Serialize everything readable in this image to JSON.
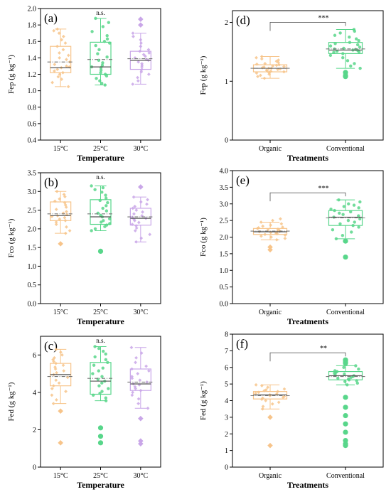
{
  "colors": {
    "orange": "#f7c48a",
    "green": "#58d68a",
    "purple": "#c9a6e8",
    "axis": "#000000",
    "mean_line": "#777777"
  },
  "chart_data": [
    {
      "type": "box",
      "panel_label": "(a)",
      "ylabel": "Fep (g kg⁻¹)",
      "xlabel": "Temperature",
      "ylim": [
        0.4,
        2.0
      ],
      "yticks": [
        0.4,
        0.6,
        0.8,
        1.0,
        1.2,
        1.4,
        1.6,
        1.8,
        2.0
      ],
      "annotation": "n.s.",
      "categories": [
        "15°C",
        "25°C",
        "30°C"
      ],
      "boxes": [
        {
          "q1": 1.22,
          "median": 1.28,
          "q3": 1.54,
          "mean": 1.35,
          "whisker_low": 1.05,
          "whisker_high": 1.75,
          "outliers": [],
          "points": [
            1.05,
            1.1,
            1.14,
            1.17,
            1.2,
            1.22,
            1.24,
            1.26,
            1.28,
            1.29,
            1.3,
            1.32,
            1.35,
            1.38,
            1.4,
            1.43,
            1.46,
            1.5,
            1.54,
            1.58,
            1.62,
            1.66,
            1.7,
            1.73,
            1.75
          ]
        },
        {
          "q1": 1.2,
          "median": 1.29,
          "q3": 1.59,
          "mean": 1.38,
          "whisker_low": 1.07,
          "whisker_high": 1.88,
          "outliers": [],
          "points": [
            1.07,
            1.09,
            1.12,
            1.15,
            1.18,
            1.2,
            1.22,
            1.25,
            1.28,
            1.29,
            1.31,
            1.34,
            1.37,
            1.41,
            1.45,
            1.5,
            1.55,
            1.58,
            1.6,
            1.63,
            1.67,
            1.72,
            1.78,
            1.83,
            1.88
          ]
        },
        {
          "q1": 1.26,
          "median": 1.37,
          "q3": 1.48,
          "mean": 1.39,
          "whisker_low": 1.08,
          "whisker_high": 1.7,
          "outliers": [
            1.8,
            1.87
          ],
          "points": [
            1.08,
            1.12,
            1.16,
            1.2,
            1.23,
            1.26,
            1.29,
            1.31,
            1.33,
            1.35,
            1.37,
            1.38,
            1.4,
            1.42,
            1.44,
            1.46,
            1.48,
            1.5,
            1.54,
            1.58,
            1.62,
            1.66,
            1.7
          ]
        }
      ]
    },
    {
      "type": "box",
      "panel_label": "(b)",
      "ylabel": "Fco (g kg⁻¹)",
      "xlabel": "Temperature",
      "ylim": [
        0.0,
        3.5
      ],
      "yticks": [
        0.0,
        0.5,
        1.0,
        1.5,
        2.0,
        2.5,
        3.0,
        3.5
      ],
      "annotation": "n.s.",
      "categories": [
        "15°C",
        "25°C",
        "30°C"
      ],
      "boxes": [
        {
          "q1": 2.22,
          "median": 2.35,
          "q3": 2.72,
          "mean": 2.4,
          "whisker_low": 1.88,
          "whisker_high": 3.0,
          "outliers": [
            1.6
          ],
          "points": [
            1.88,
            1.95,
            2.05,
            2.12,
            2.18,
            2.22,
            2.26,
            2.3,
            2.33,
            2.35,
            2.38,
            2.42,
            2.46,
            2.52,
            2.58,
            2.64,
            2.7,
            2.74,
            2.8,
            2.86,
            2.92,
            3.0
          ]
        },
        {
          "q1": 2.12,
          "median": 2.32,
          "q3": 2.78,
          "mean": 2.4,
          "whisker_low": 1.95,
          "whisker_high": 3.15,
          "outliers": [
            1.4
          ],
          "points": [
            1.95,
            2.0,
            2.06,
            2.1,
            2.14,
            2.18,
            2.22,
            2.27,
            2.32,
            2.36,
            2.42,
            2.48,
            2.55,
            2.62,
            2.7,
            2.76,
            2.82,
            2.9,
            2.98,
            3.05,
            3.1,
            3.15
          ]
        },
        {
          "q1": 2.1,
          "median": 2.28,
          "q3": 2.55,
          "mean": 2.32,
          "whisker_low": 1.65,
          "whisker_high": 2.85,
          "outliers": [
            3.12
          ],
          "points": [
            1.65,
            1.75,
            1.85,
            1.95,
            2.02,
            2.08,
            2.12,
            2.17,
            2.22,
            2.26,
            2.28,
            2.31,
            2.35,
            2.4,
            2.45,
            2.5,
            2.55,
            2.6,
            2.66,
            2.72,
            2.78,
            2.85
          ]
        }
      ]
    },
    {
      "type": "box",
      "panel_label": "(c)",
      "ylabel": "Fed (g kg⁻¹)",
      "xlabel": "Temperature",
      "ylim": [
        0,
        7
      ],
      "yticks": [
        0,
        2,
        4,
        6
      ],
      "annotation": "n.s.",
      "categories": [
        "15°C",
        "25°C",
        "30°C"
      ],
      "boxes": [
        {
          "q1": 4.35,
          "median": 4.95,
          "q3": 5.55,
          "mean": 4.85,
          "whisker_low": 3.4,
          "whisker_high": 6.3,
          "outliers": [
            3.0,
            1.3
          ],
          "points": [
            3.4,
            3.6,
            3.85,
            4.05,
            4.2,
            4.35,
            4.5,
            4.65,
            4.8,
            4.95,
            5.05,
            5.15,
            5.25,
            5.35,
            5.45,
            5.55,
            5.65,
            5.75,
            5.85,
            6.0,
            6.15,
            6.3
          ]
        },
        {
          "q1": 3.9,
          "median": 4.6,
          "q3": 5.6,
          "mean": 4.75,
          "whisker_low": 3.55,
          "whisker_high": 6.45,
          "outliers": [
            2.1,
            1.65,
            1.3
          ],
          "points": [
            3.55,
            3.7,
            3.85,
            3.95,
            4.05,
            4.2,
            4.35,
            4.5,
            4.6,
            4.7,
            4.85,
            5.0,
            5.15,
            5.3,
            5.45,
            5.6,
            5.75,
            5.9,
            6.05,
            6.2,
            6.35,
            6.45
          ]
        },
        {
          "q1": 4.1,
          "median": 4.45,
          "q3": 5.25,
          "mean": 4.55,
          "whisker_low": 3.15,
          "whisker_high": 6.4,
          "outliers": [
            2.6,
            1.4,
            1.25
          ],
          "points": [
            3.15,
            3.4,
            3.65,
            3.85,
            4.0,
            4.1,
            4.2,
            4.3,
            4.4,
            4.45,
            4.55,
            4.65,
            4.75,
            4.85,
            5.0,
            5.15,
            5.25,
            5.4,
            5.6,
            5.85,
            6.1,
            6.4
          ]
        }
      ]
    },
    {
      "type": "box",
      "panel_label": "(d)",
      "ylabel": "Fep (g kg⁻¹)",
      "xlabel": "Treatments",
      "ylim": [
        0,
        2.2
      ],
      "yticks": [
        0,
        1,
        2
      ],
      "annotation": "***",
      "categories": [
        "Organic",
        "Conventional"
      ],
      "boxes": [
        {
          "q1": 1.16,
          "median": 1.22,
          "q3": 1.28,
          "mean": 1.22,
          "whisker_low": 1.05,
          "whisker_high": 1.42,
          "outliers": [],
          "points": [
            1.05,
            1.08,
            1.1,
            1.12,
            1.14,
            1.15,
            1.16,
            1.17,
            1.18,
            1.19,
            1.2,
            1.21,
            1.22,
            1.22,
            1.23,
            1.24,
            1.25,
            1.26,
            1.27,
            1.28,
            1.29,
            1.3,
            1.32,
            1.34,
            1.36,
            1.38,
            1.4,
            1.42
          ]
        },
        {
          "q1": 1.47,
          "median": 1.53,
          "q3": 1.66,
          "mean": 1.55,
          "whisker_low": 1.22,
          "whisker_high": 1.88,
          "outliers": [
            1.15,
            1.1,
            1.08
          ],
          "points": [
            1.22,
            1.26,
            1.3,
            1.35,
            1.4,
            1.44,
            1.47,
            1.49,
            1.5,
            1.51,
            1.52,
            1.53,
            1.54,
            1.55,
            1.56,
            1.58,
            1.6,
            1.62,
            1.64,
            1.66,
            1.69,
            1.72,
            1.75,
            1.78,
            1.82,
            1.85,
            1.88
          ]
        }
      ]
    },
    {
      "type": "box",
      "panel_label": "(e)",
      "ylabel": "Fco (g kg⁻¹)",
      "xlabel": "Treatments",
      "ylim": [
        0.0,
        4.0
      ],
      "yticks": [
        0.0,
        0.5,
        1.0,
        1.5,
        2.0,
        2.5,
        3.0,
        3.5,
        4.0
      ],
      "annotation": "***",
      "categories": [
        "Organic",
        "Conventional"
      ],
      "boxes": [
        {
          "q1": 2.08,
          "median": 2.16,
          "q3": 2.26,
          "mean": 2.18,
          "whisker_low": 1.92,
          "whisker_high": 2.45,
          "outliers": [
            1.7,
            1.62
          ],
          "points": [
            1.92,
            1.96,
            2.0,
            2.03,
            2.06,
            2.08,
            2.1,
            2.12,
            2.14,
            2.16,
            2.17,
            2.18,
            2.2,
            2.22,
            2.24,
            2.26,
            2.28,
            2.3,
            2.33,
            2.36,
            2.4,
            2.45,
            2.5,
            2.55
          ]
        },
        {
          "q1": 2.35,
          "median": 2.6,
          "q3": 2.8,
          "mean": 2.58,
          "whisker_low": 1.95,
          "whisker_high": 3.12,
          "outliers": [
            1.88,
            1.4
          ],
          "points": [
            1.95,
            2.05,
            2.15,
            2.22,
            2.3,
            2.35,
            2.4,
            2.45,
            2.5,
            2.55,
            2.6,
            2.64,
            2.68,
            2.72,
            2.76,
            2.8,
            2.84,
            2.88,
            2.92,
            2.96,
            3.0,
            3.06,
            3.12
          ]
        }
      ]
    },
    {
      "type": "box",
      "panel_label": "(f)",
      "ylabel": "Fed (g kg⁻¹)",
      "xlabel": "Treatments",
      "ylim": [
        0,
        8
      ],
      "yticks": [
        0,
        1,
        2,
        3,
        4,
        5,
        6,
        7,
        8
      ],
      "annotation": "**",
      "categories": [
        "Organic",
        "Conventional"
      ],
      "boxes": [
        {
          "q1": 4.1,
          "median": 4.35,
          "q3": 4.55,
          "mean": 4.3,
          "whisker_low": 3.5,
          "whisker_high": 4.95,
          "outliers": [
            3.0,
            1.3
          ],
          "points": [
            3.5,
            3.65,
            3.8,
            3.9,
            4.0,
            4.08,
            4.15,
            4.2,
            4.25,
            4.3,
            4.35,
            4.4,
            4.45,
            4.5,
            4.55,
            4.6,
            4.65,
            4.7,
            4.8,
            4.9,
            4.95
          ]
        },
        {
          "q1": 5.25,
          "median": 5.5,
          "q3": 5.75,
          "mean": 5.45,
          "whisker_low": 4.95,
          "whisker_high": 6.1,
          "outliers": [
            6.45,
            6.4,
            6.3,
            6.25,
            4.2,
            3.6,
            3.1,
            2.6,
            2.1,
            1.6,
            1.4,
            1.3
          ],
          "points": [
            4.95,
            5.05,
            5.15,
            5.2,
            5.25,
            5.3,
            5.35,
            5.4,
            5.45,
            5.5,
            5.55,
            5.6,
            5.65,
            5.7,
            5.75,
            5.8,
            5.9,
            6.0,
            6.1
          ]
        }
      ]
    }
  ]
}
